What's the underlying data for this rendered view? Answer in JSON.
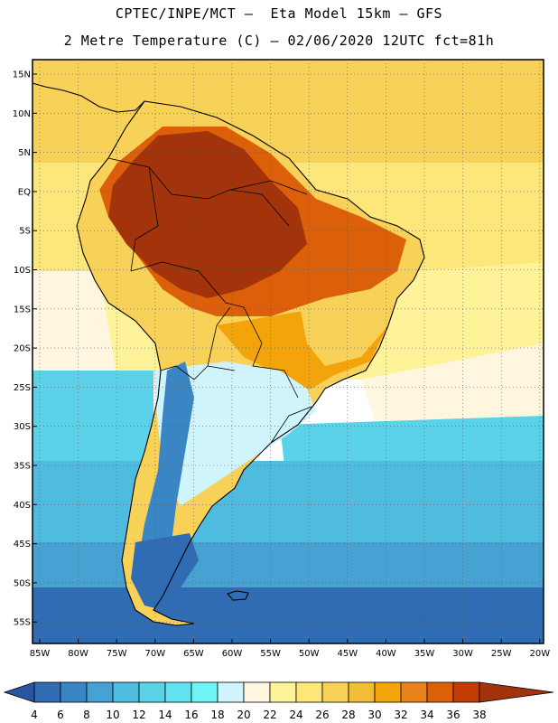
{
  "header": {
    "line1": "CPTEC/INPE/MCT –  Eta Model 15km – GFS",
    "line2": "2 Metre Temperature (C) – 02/06/2020 12UTC fct=81h"
  },
  "axes": {
    "lat_labels": [
      "15N",
      "10N",
      "5N",
      "EQ",
      "5S",
      "10S",
      "15S",
      "20S",
      "25S",
      "30S",
      "35S",
      "40S",
      "45S",
      "50S",
      "55S"
    ],
    "lon_labels": [
      "85W",
      "80W",
      "75W",
      "70W",
      "65W",
      "60W",
      "55W",
      "50W",
      "45W",
      "40W",
      "35W",
      "30W",
      "25W",
      "20W"
    ]
  },
  "colorbar": {
    "labels": [
      "4",
      "6",
      "8",
      "10",
      "12",
      "14",
      "16",
      "18",
      "20",
      "22",
      "24",
      "26",
      "28",
      "30",
      "32",
      "34",
      "36",
      "38"
    ],
    "colors": [
      "#2a55a2",
      "#2f6cb3",
      "#3a86c4",
      "#45a2d2",
      "#4fbcdf",
      "#5bd2e8",
      "#62e2ef",
      "#6ff5f8",
      "#cff4fb",
      "#fff6e0",
      "#fff39a",
      "#fde67a",
      "#f7d158",
      "#f2bd36",
      "#f2a40a",
      "#e8821b",
      "#dc5f0a",
      "#c33c04",
      "#a3330a"
    ]
  },
  "palette": {
    "ocean_far_north": "#f7d158",
    "ocean_north": "#fde67a",
    "ocean_tropic_pale": "#fff39a",
    "ocean_cream": "#fff6e0",
    "ocean_mid": "#5bd2e8",
    "ocean_cool": "#4fbcdf",
    "ocean_south": "#45a2d2",
    "ocean_deep_south": "#2f6cb3",
    "amazon_hot": "#a3330a",
    "land_hot": "#dc5f0a",
    "land_warm": "#f2a40a",
    "land_mild": "#f7d158",
    "land_cool": "#cff4fb",
    "andes_cold": "#3a86c4",
    "patagonia_cold": "#2f6cb3",
    "coast_line": "#000000"
  }
}
